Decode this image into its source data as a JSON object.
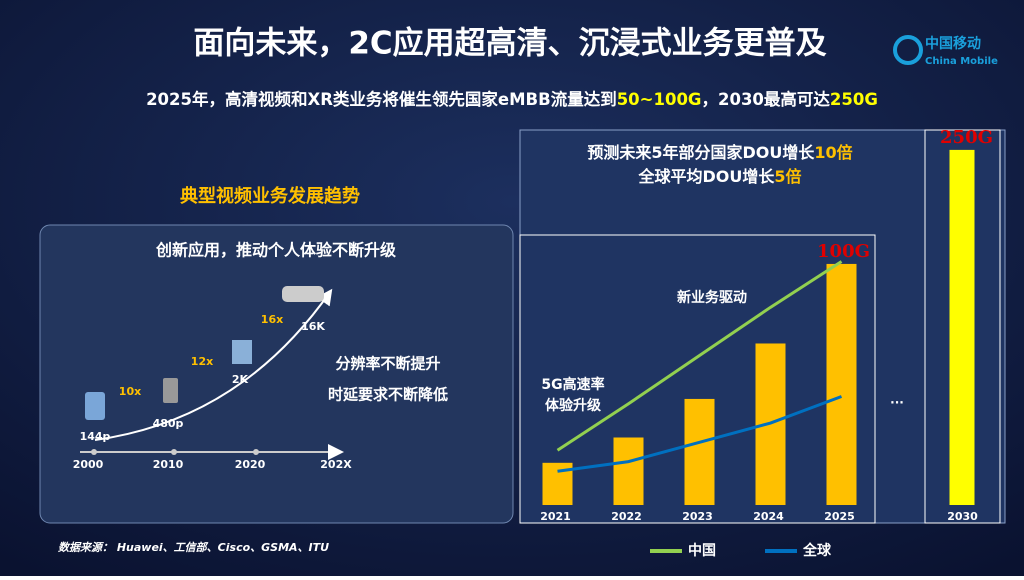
{
  "header": {
    "title": "面向未来，2C应用超高清、沉浸式业务更普及",
    "logo_cn": "中国移动",
    "logo_en": "China Mobile",
    "subtitle": [
      "2025年，高清视频和XR类业务将催生领先国家eMBB流量达到",
      "50~100G",
      "，2030最高可达",
      "250G"
    ]
  },
  "left": {
    "heading": "典型视频业务发展趋势",
    "panel_title": "创新应用，推动个人体验不断升级",
    "resolutions": [
      "144p",
      "480p",
      "2K",
      "16K"
    ],
    "multipliers": [
      "10x",
      "12x",
      "16x"
    ],
    "notes": [
      "分辨率不断提升",
      "时延要求不断降低"
    ],
    "timeline": [
      "2000",
      "2010",
      "2020",
      "202X"
    ]
  },
  "right": {
    "headline": [
      [
        "预测未来5年部分国家DOU增长",
        "10倍"
      ],
      [
        "全球平均DOU增长",
        "5倍"
      ]
    ],
    "annotations": [
      "新业务驱动",
      "5G高速率",
      "体验升级",
      "..."
    ]
  },
  "source": "数据来源：  Huawei、工信部、Cisco、GSMA、ITU",
  "chart_data": [
    {
      "type": "bar",
      "categories": [
        "2021",
        "2022",
        "2023",
        "2024",
        "2025"
      ],
      "values": [
        17.5,
        28,
        44,
        67,
        100
      ],
      "value_labels": [
        null,
        null,
        null,
        null,
        "100G"
      ],
      "color": "#ffc000",
      "ylim": [
        0,
        112
      ],
      "series": [
        {
          "name": "中国",
          "color": "#92d050",
          "values": [
            22.7,
            42,
            62,
            82,
            101
          ]
        },
        {
          "name": "全球",
          "color": "#0070c0",
          "values": [
            14,
            18,
            26,
            34,
            45
          ]
        }
      ]
    },
    {
      "type": "bar",
      "categories": [
        "2030"
      ],
      "values": [
        250
      ],
      "value_labels": [
        "250G"
      ],
      "color": "#ffff00",
      "ylim": [
        0,
        264
      ]
    }
  ]
}
